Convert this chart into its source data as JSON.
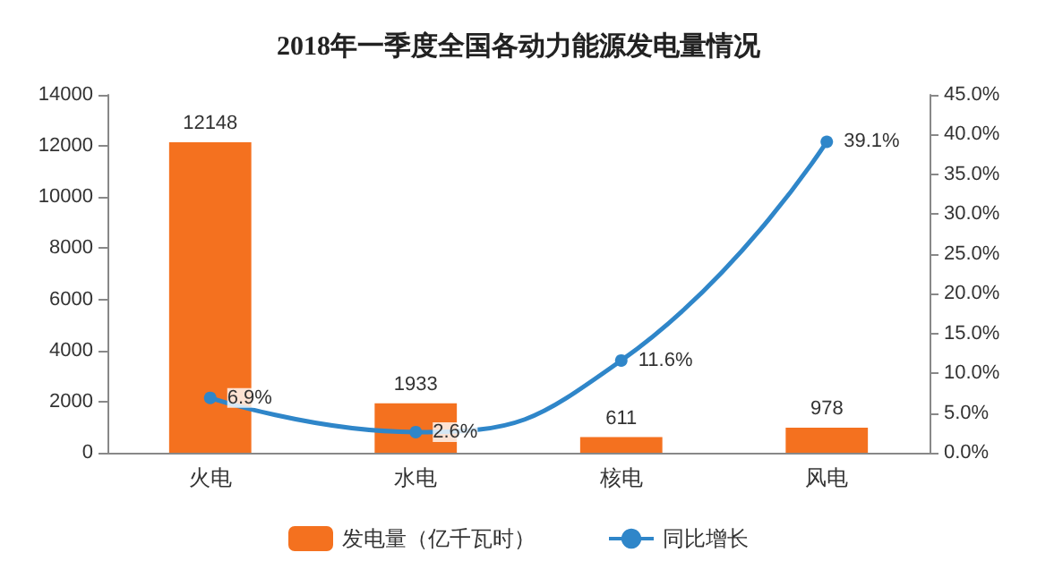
{
  "chart_data": {
    "type": "bar",
    "title": "2018年一季度全国各动力能源发电量情况",
    "categories": [
      "火电",
      "水电",
      "核电",
      "风电"
    ],
    "series": [
      {
        "name": "发电量（亿千瓦时）",
        "color": "#f4711f",
        "values": [
          12148,
          1933,
          611,
          978
        ],
        "value_labels": [
          "12148",
          "1933",
          "611",
          "978"
        ]
      },
      {
        "name": "同比增长",
        "type": "line",
        "axis": "y2",
        "color": "#2f86c9",
        "values": [
          6.9,
          2.6,
          11.6,
          39.1
        ],
        "value_labels": [
          "6.9%",
          "2.6%",
          "11.6%",
          "39.1%"
        ]
      }
    ],
    "ylim": [
      0,
      14000
    ],
    "yticks": [
      0,
      2000,
      4000,
      6000,
      8000,
      10000,
      12000,
      14000
    ],
    "y2lim": [
      0,
      45
    ],
    "y2ticks": [
      {
        "value": 0,
        "label": "0.0%"
      },
      {
        "value": 5,
        "label": "5.0%"
      },
      {
        "value": 10,
        "label": "10.0%"
      },
      {
        "value": 15,
        "label": "15.0%"
      },
      {
        "value": 20,
        "label": "20.0%"
      },
      {
        "value": 25,
        "label": "25.0%"
      },
      {
        "value": 30,
        "label": "30.0%"
      },
      {
        "value": 35,
        "label": "35.0%"
      },
      {
        "value": 40,
        "label": "40.0%"
      },
      {
        "value": 45,
        "label": "45.0%"
      }
    ],
    "legend": "bottom",
    "marker": "circle",
    "grid": false
  }
}
